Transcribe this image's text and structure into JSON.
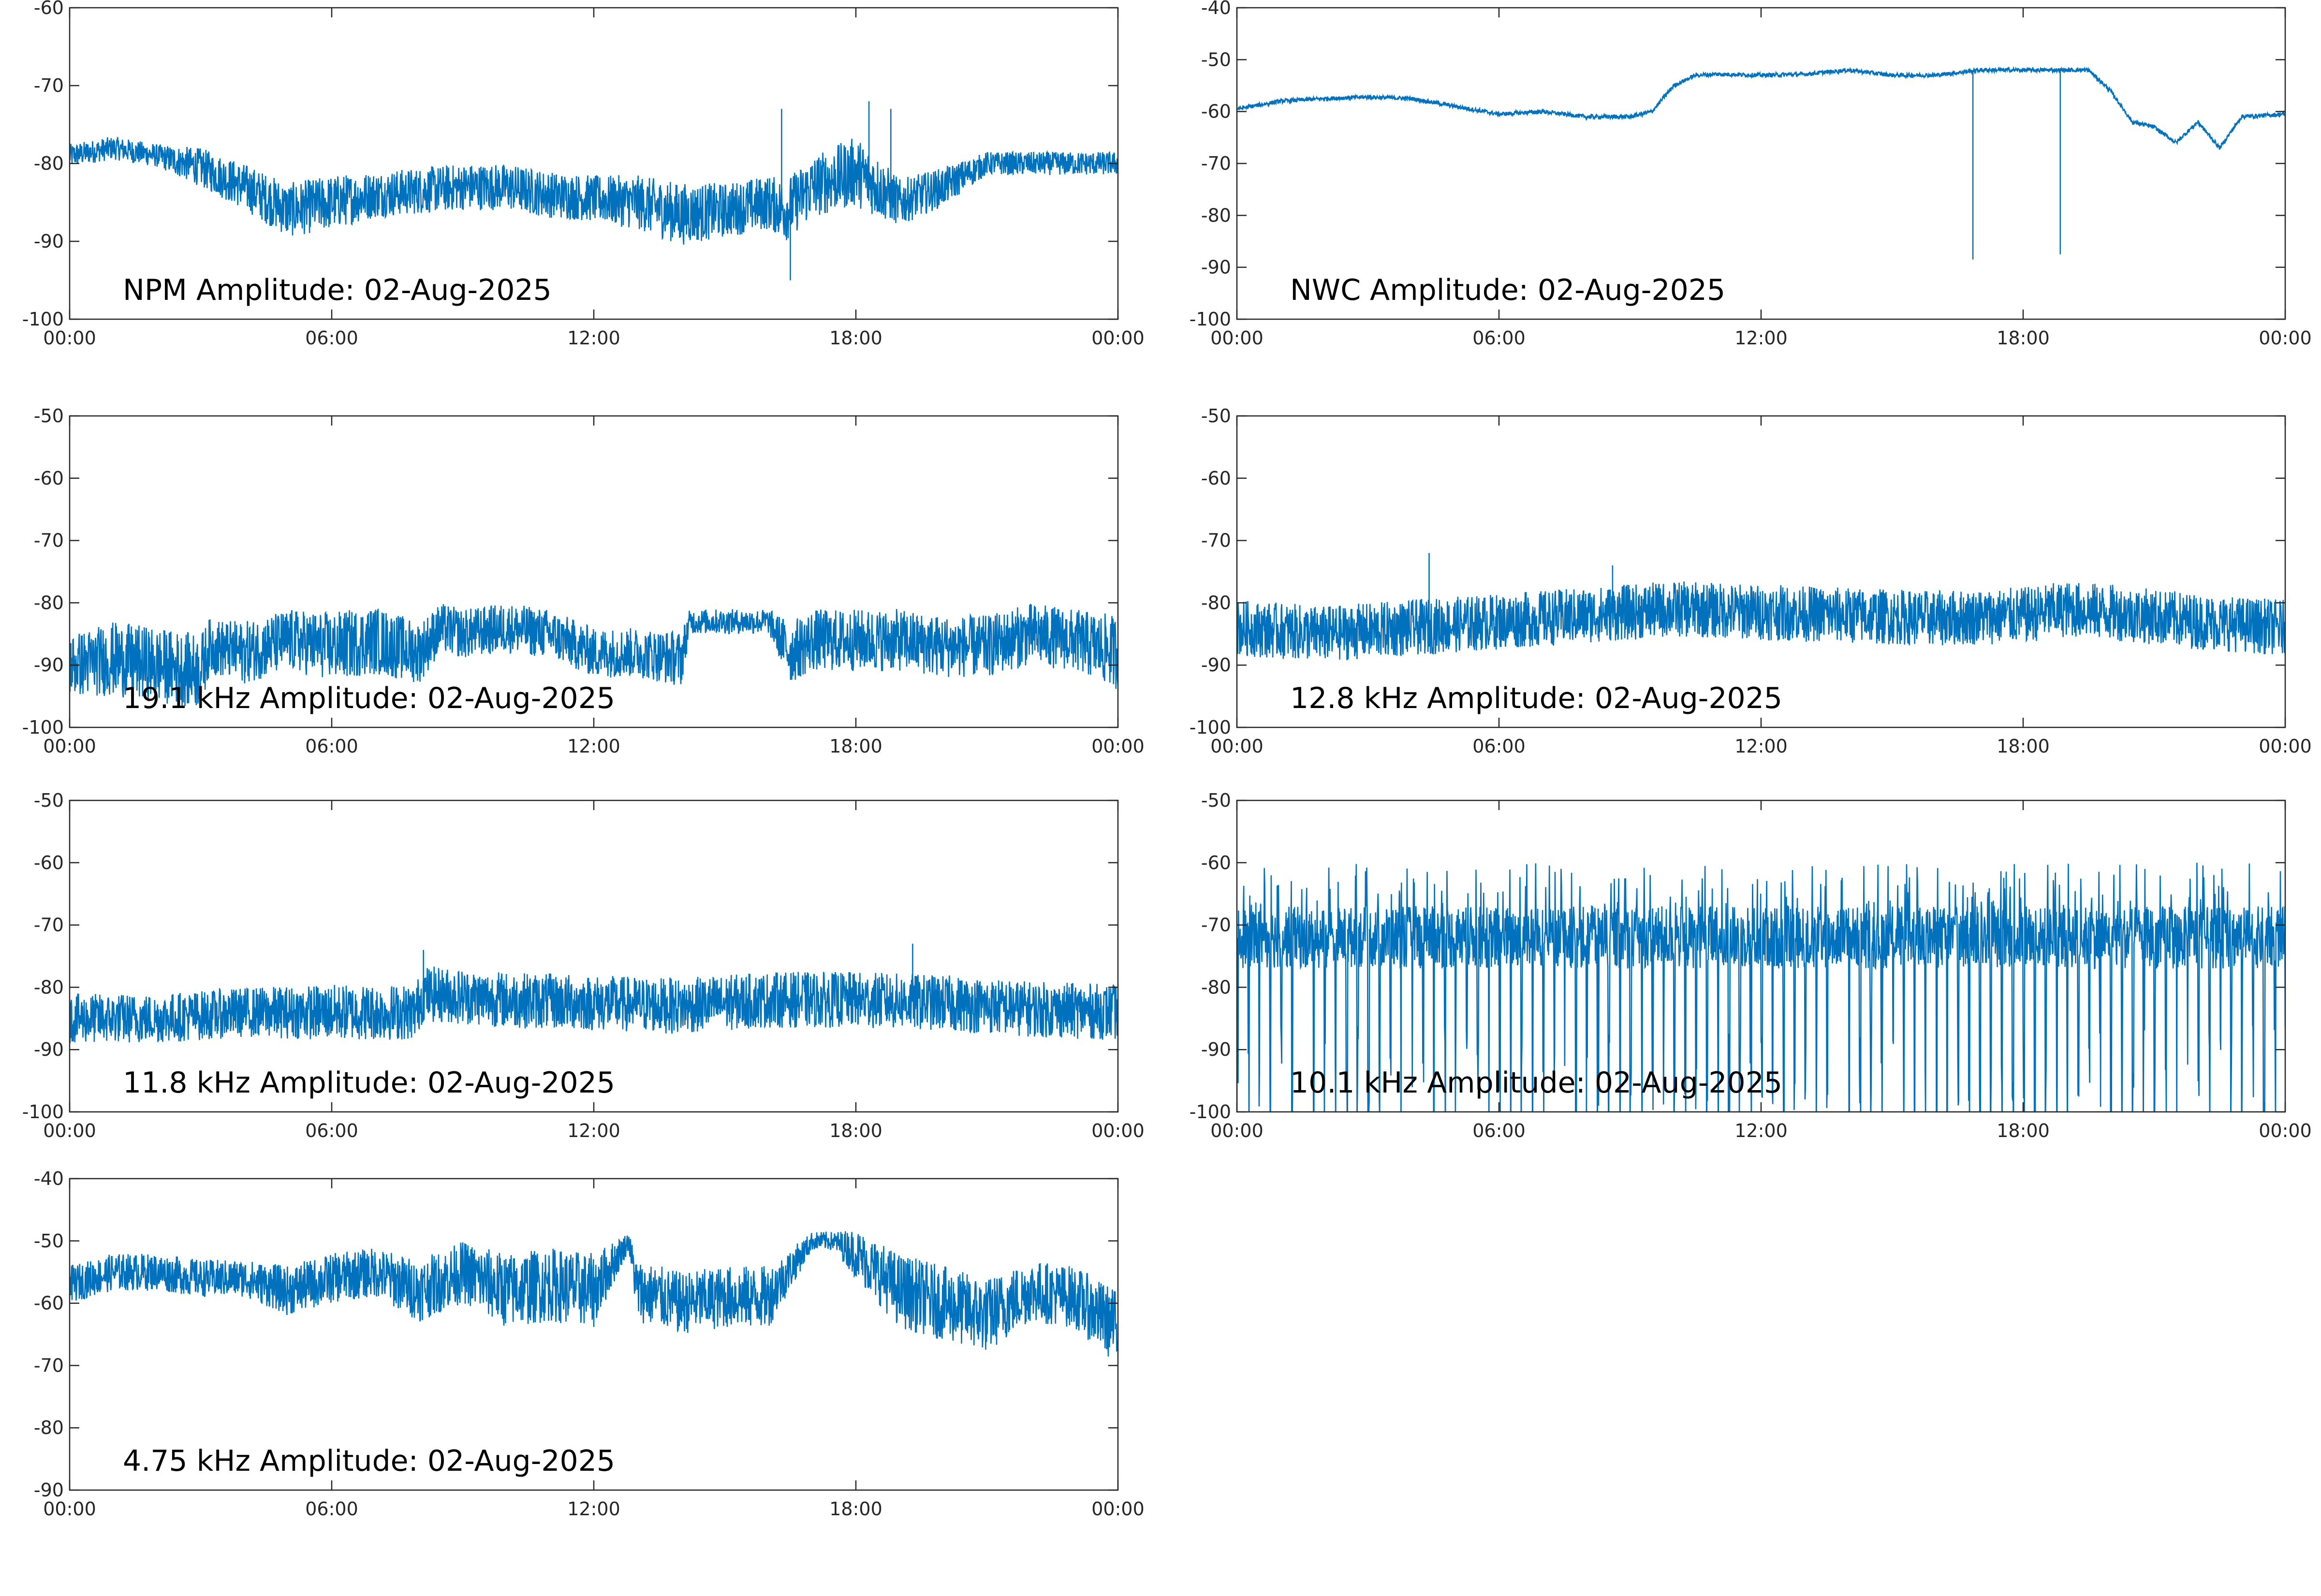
{
  "colors": {
    "series": "#0072BD",
    "axes": "#262626",
    "background": "#ffffff"
  },
  "chart_data": [
    {
      "type": "line",
      "annotation": "NPM Amplitude: 02-Aug-2025",
      "x_ticks": [
        "00:00",
        "06:00",
        "12:00",
        "18:00",
        "00:00"
      ],
      "ylim": [
        -100,
        -60
      ],
      "y_ticks": [
        "-60",
        "-70",
        "-80",
        "-90",
        "-100"
      ],
      "grid": false,
      "series": [
        {
          "x_hours": [
            0,
            1,
            2,
            3,
            4,
            5,
            6,
            7,
            8,
            9,
            10,
            11,
            12,
            13,
            14,
            15,
            16,
            16.4,
            17,
            18,
            18.5,
            19,
            20,
            21,
            22,
            23,
            24
          ],
          "y_mid": [
            -79,
            -78,
            -79,
            -80.5,
            -83,
            -86,
            -85,
            -84,
            -83.5,
            -83,
            -83,
            -84,
            -84.5,
            -85,
            -86.5,
            -86,
            -85,
            -86,
            -83,
            -81,
            -83,
            -85,
            -83,
            -80,
            -80,
            -80,
            -80
          ],
          "noise_pp": [
            3,
            3,
            3,
            5,
            6,
            7,
            7,
            6,
            6,
            6,
            6,
            6,
            6,
            7,
            8,
            7,
            7,
            8,
            8,
            9,
            8,
            6,
            5,
            3,
            3,
            3,
            3
          ],
          "spikes": [
            {
              "h": 16.3,
              "y": -73
            },
            {
              "h": 18.3,
              "y": -72
            },
            {
              "h": 18.8,
              "y": -73
            },
            {
              "h": 16.5,
              "y": -95
            }
          ]
        }
      ]
    },
    {
      "type": "line",
      "annotation": "NWC Amplitude: 02-Aug-2025",
      "x_ticks": [
        "00:00",
        "06:00",
        "12:00",
        "18:00",
        "00:00"
      ],
      "ylim": [
        -100,
        -40
      ],
      "y_ticks": [
        "-40",
        "-50",
        "-60",
        "-70",
        "-80",
        "-90",
        "-100"
      ],
      "grid": false,
      "series": [
        {
          "x_hours": [
            0,
            1,
            2,
            3,
            4,
            5,
            6,
            7,
            8,
            9,
            9.5,
            10,
            10.5,
            11,
            12,
            13,
            14,
            15,
            16,
            17,
            18,
            19,
            19.5,
            20,
            20.5,
            21,
            21.5,
            22,
            22.5,
            23,
            24
          ],
          "y_mid": [
            -59.5,
            -58,
            -57.5,
            -57.2,
            -57.5,
            -59,
            -60.5,
            -60,
            -61,
            -61,
            -60,
            -55,
            -53,
            -52.8,
            -53,
            -52.8,
            -52,
            -53,
            -53,
            -52,
            -52,
            -52,
            -52,
            -56,
            -62,
            -63,
            -66,
            -62,
            -67,
            -61,
            -60.5
          ],
          "noise_pp": [
            0.8,
            0.8,
            0.8,
            0.8,
            0.8,
            0.8,
            0.8,
            0.8,
            0.8,
            0.8,
            0.8,
            0.8,
            0.8,
            0.8,
            0.8,
            0.8,
            0.8,
            0.8,
            0.8,
            0.8,
            0.8,
            0.8,
            0.8,
            0.8,
            0.8,
            0.8,
            0.8,
            0.8,
            0.8,
            0.8,
            0.8
          ],
          "spikes": [
            {
              "h": 16.85,
              "y": -88.5
            },
            {
              "h": 18.85,
              "y": -87.5
            }
          ]
        }
      ]
    },
    {
      "type": "line",
      "annotation": "19.1 kHz Amplitude: 02-Aug-2025",
      "x_ticks": [
        "00:00",
        "06:00",
        "12:00",
        "18:00",
        "00:00"
      ],
      "ylim": [
        -100,
        -50
      ],
      "y_ticks": [
        "-50",
        "-60",
        "-70",
        "-80",
        "-90",
        "-100"
      ],
      "grid": false,
      "series": [
        {
          "x_hours": [
            0,
            1,
            2,
            3,
            3.2,
            4,
            5,
            6,
            7,
            8,
            8.5,
            9,
            10,
            11,
            12,
            13,
            14,
            14.2,
            15,
            16,
            16.5,
            17,
            18,
            19,
            20,
            21,
            22,
            23,
            24
          ],
          "y_mid": [
            -90,
            -89,
            -90,
            -91,
            -87,
            -88,
            -86,
            -87,
            -86,
            -88,
            -84,
            -85,
            -84,
            -85,
            -88,
            -88,
            -89,
            -83,
            -83,
            -83,
            -88,
            -86,
            -86,
            -86,
            -87,
            -87,
            -85,
            -86,
            -88
          ],
          "noise_pp": [
            10,
            12,
            12,
            12,
            9,
            10,
            10,
            11,
            11,
            10,
            8,
            8,
            8,
            8,
            8,
            8,
            9,
            4,
            4,
            4,
            10,
            10,
            10,
            10,
            10,
            10,
            10,
            10,
            12
          ],
          "spikes": []
        }
      ]
    },
    {
      "type": "line",
      "annotation": "12.8 kHz Amplitude: 02-Aug-2025",
      "x_ticks": [
        "00:00",
        "06:00",
        "12:00",
        "18:00",
        "00:00"
      ],
      "ylim": [
        -100,
        -50
      ],
      "y_ticks": [
        "-50",
        "-60",
        "-70",
        "-80",
        "-90",
        "-100"
      ],
      "grid": false,
      "series": [
        {
          "x_hours": [
            0,
            2,
            4,
            6,
            8,
            10,
            12,
            14,
            16,
            18,
            19,
            20,
            22,
            24
          ],
          "y_mid": [
            -84,
            -85,
            -84,
            -83,
            -82,
            -81,
            -81.5,
            -82,
            -82.5,
            -82,
            -81,
            -81.5,
            -83,
            -84
          ],
          "noise_pp": [
            9,
            9,
            9,
            9,
            9,
            9,
            9,
            9,
            9,
            9,
            9,
            9,
            9,
            9
          ],
          "spikes": [
            {
              "h": 4.4,
              "y": -72
            },
            {
              "h": 8.6,
              "y": -74
            }
          ]
        }
      ]
    },
    {
      "type": "line",
      "annotation": "11.8 kHz Amplitude: 02-Aug-2025",
      "x_ticks": [
        "00:00",
        "06:00",
        "12:00",
        "18:00",
        "00:00"
      ],
      "ylim": [
        -100,
        -50
      ],
      "y_ticks": [
        "-50",
        "-60",
        "-70",
        "-80",
        "-90",
        "-100"
      ],
      "grid": false,
      "series": [
        {
          "x_hours": [
            0,
            2,
            4,
            6,
            7.9,
            8.1,
            10,
            12,
            14,
            16,
            18,
            20,
            22,
            24
          ],
          "y_mid": [
            -85,
            -85,
            -84,
            -84,
            -84,
            -81,
            -82,
            -82.5,
            -83,
            -82,
            -82,
            -82.5,
            -83.5,
            -84
          ],
          "noise_pp": [
            8,
            8,
            8,
            9,
            9,
            9,
            9,
            9,
            9,
            9,
            9,
            9,
            9,
            9
          ],
          "spikes": [
            {
              "h": 8.1,
              "y": -74
            },
            {
              "h": 19.3,
              "y": -73
            }
          ]
        }
      ]
    },
    {
      "type": "line",
      "annotation": "10.1 kHz Amplitude: 02-Aug-2025",
      "x_ticks": [
        "00:00",
        "06:00",
        "12:00",
        "18:00",
        "00:00"
      ],
      "ylim": [
        -100,
        -50
      ],
      "y_ticks": [
        "-50",
        "-60",
        "-70",
        "-80",
        "-90",
        "-100"
      ],
      "grid": false,
      "series": [
        {
          "x_hours": [
            0,
            4,
            8,
            12,
            16,
            20,
            24
          ],
          "y_mid": [
            -72,
            -72,
            -72,
            -72,
            -72,
            -72,
            -72
          ],
          "noise_pp": [
            10,
            10,
            10,
            10,
            10,
            10,
            10
          ],
          "dropouts_per_hour": 4,
          "spikes": []
        }
      ]
    },
    {
      "type": "line",
      "annotation": "4.75 kHz Amplitude: 02-Aug-2025",
      "x_ticks": [
        "00:00",
        "06:00",
        "12:00",
        "18:00",
        "00:00"
      ],
      "ylim": [
        -90,
        -40
      ],
      "y_ticks": [
        "-40",
        "-50",
        "-60",
        "-70",
        "-80",
        "-90"
      ],
      "grid": false,
      "series": [
        {
          "x_hours": [
            0,
            1,
            2,
            3,
            4,
            5,
            6,
            7,
            8,
            9,
            10,
            11,
            12,
            12.8,
            13,
            14,
            15,
            16,
            17,
            17.5,
            18,
            19,
            20,
            21,
            22,
            23,
            24
          ],
          "y_mid": [
            -57,
            -55,
            -55,
            -56,
            -56,
            -58,
            -56,
            -55,
            -58,
            -55,
            -58,
            -57,
            -58,
            -50,
            -58,
            -60,
            -59,
            -59,
            -50,
            -50,
            -52,
            -58,
            -60,
            -62,
            -58,
            -59,
            -64
          ],
          "noise_pp": [
            6,
            6,
            6,
            6,
            6,
            8,
            8,
            8,
            10,
            10,
            12,
            12,
            12,
            3,
            10,
            10,
            10,
            10,
            3,
            3,
            8,
            12,
            12,
            12,
            10,
            10,
            12
          ],
          "spikes": []
        }
      ]
    }
  ]
}
